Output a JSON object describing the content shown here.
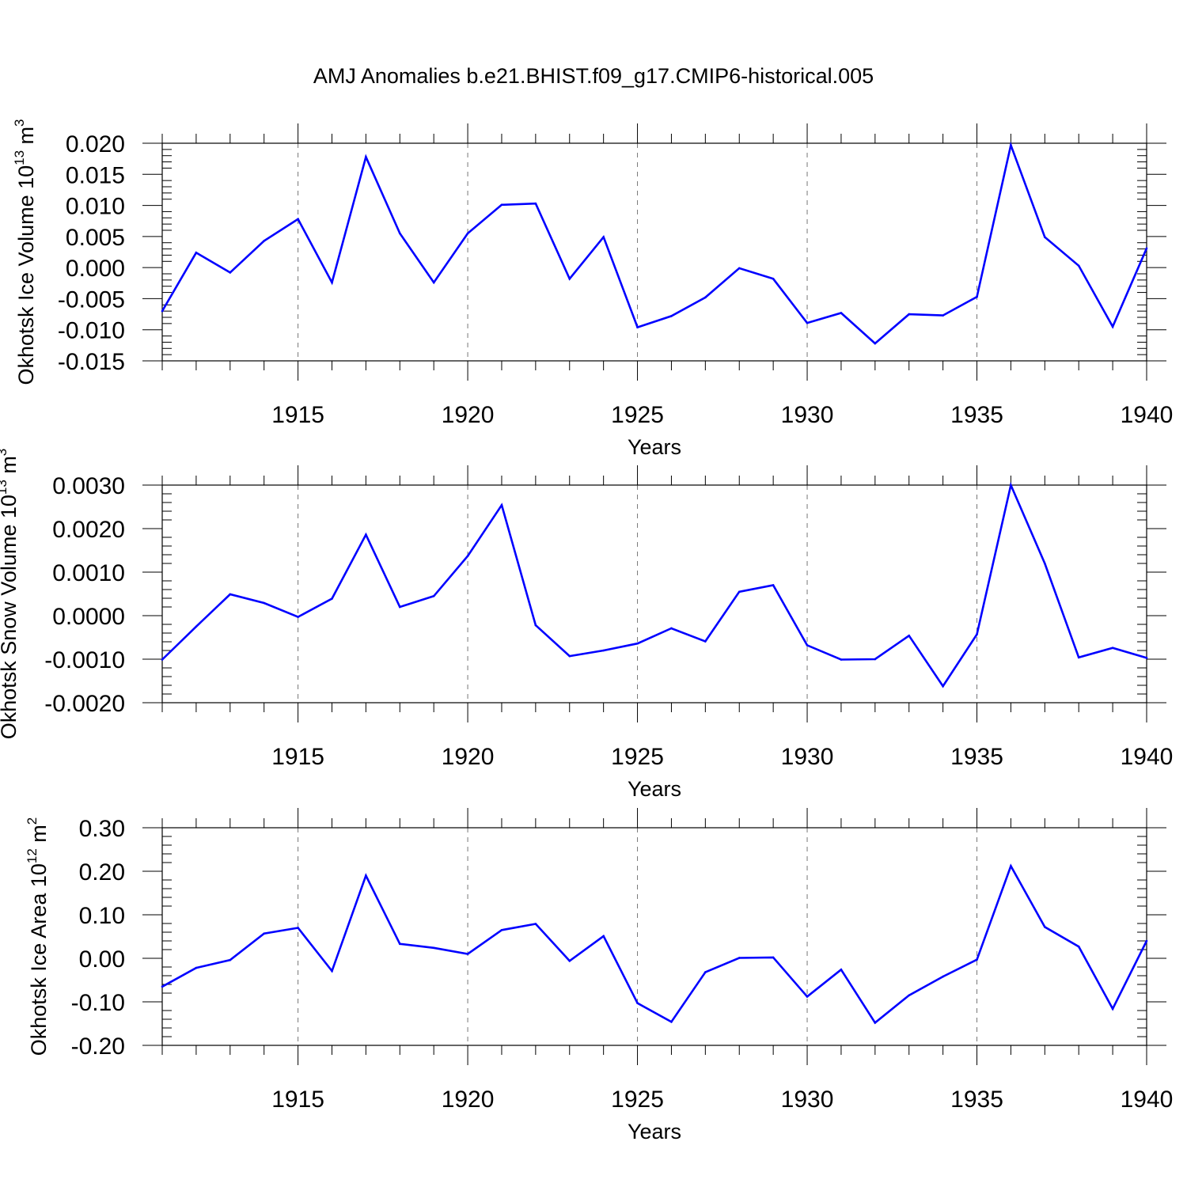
{
  "title": "AMJ Anomalies b.e21.BHIST.f09_g17.CMIP6-historical.005",
  "line_color": "#0000ff",
  "chart_data": [
    {
      "type": "line",
      "ylabel": "Okhotsk Ice Volume 10",
      "ylabel_exp": "13",
      "ylabel_unit": " m",
      "ylabel_unit_exp": "3",
      "xlabel": "Years",
      "xlim": [
        1911,
        1940
      ],
      "ylim": [
        -0.015,
        0.02
      ],
      "xticks": [
        1915,
        1920,
        1925,
        1930,
        1935,
        1940
      ],
      "yticks": [
        -0.015,
        -0.01,
        -0.005,
        0.0,
        0.005,
        0.01,
        0.015,
        0.02
      ],
      "ytick_labels": [
        "-0.015",
        "-0.010",
        "-0.005",
        "0.000",
        "0.005",
        "0.010",
        "0.015",
        "0.020"
      ],
      "grid": "vertical dashed at major x ticks",
      "x": [
        1911,
        1912,
        1913,
        1914,
        1915,
        1916,
        1917,
        1918,
        1919,
        1920,
        1921,
        1922,
        1923,
        1924,
        1925,
        1926,
        1927,
        1928,
        1929,
        1930,
        1931,
        1932,
        1933,
        1934,
        1935,
        1936,
        1937,
        1938,
        1939,
        1940
      ],
      "values": [
        -0.007,
        0.0024,
        -0.0008,
        0.0043,
        0.0078,
        -0.0024,
        0.0178,
        0.0055,
        -0.0024,
        0.0055,
        0.0101,
        0.0103,
        -0.0018,
        0.0049,
        -0.0096,
        -0.0078,
        -0.0048,
        -0.0001,
        -0.0018,
        -0.0089,
        -0.0073,
        -0.0122,
        -0.0075,
        -0.0077,
        -0.0047,
        0.0197,
        0.0049,
        0.0003,
        -0.0095,
        0.0031
      ]
    },
    {
      "type": "line",
      "ylabel": "Okhotsk Snow Volume 10",
      "ylabel_exp": "13",
      "ylabel_unit": " m",
      "ylabel_unit_exp": "3",
      "xlabel": "Years",
      "xlim": [
        1911,
        1940
      ],
      "ylim": [
        -0.002,
        0.003
      ],
      "xticks": [
        1915,
        1920,
        1925,
        1930,
        1935,
        1940
      ],
      "yticks": [
        -0.002,
        -0.001,
        0.0,
        0.001,
        0.002,
        0.003
      ],
      "ytick_labels": [
        "-0.0020",
        "-0.0010",
        "0.0000",
        "0.0010",
        "0.0020",
        "0.0030"
      ],
      "grid": "vertical dashed at major x ticks",
      "x": [
        1911,
        1912,
        1913,
        1914,
        1915,
        1916,
        1917,
        1918,
        1919,
        1920,
        1921,
        1922,
        1923,
        1924,
        1925,
        1926,
        1927,
        1928,
        1929,
        1930,
        1931,
        1932,
        1933,
        1934,
        1935,
        1936,
        1937,
        1938,
        1939,
        1940
      ],
      "values": [
        -0.00101,
        -0.00025,
        0.00049,
        0.00029,
        -3e-05,
        0.00039,
        0.00186,
        0.0002,
        0.00045,
        0.00137,
        0.00254,
        -0.00022,
        -0.00093,
        -0.0008,
        -0.00064,
        -0.00029,
        -0.00059,
        0.00055,
        0.0007,
        -0.00068,
        -0.00101,
        -0.001,
        -0.00046,
        -0.00162,
        -0.00043,
        0.003,
        0.0012,
        -0.00096,
        -0.00074,
        -0.00097
      ]
    },
    {
      "type": "line",
      "ylabel": "Okhotsk Ice Area 10",
      "ylabel_exp": "12",
      "ylabel_unit": " m",
      "ylabel_unit_exp": "2",
      "xlabel": "Years",
      "xlim": [
        1911,
        1940
      ],
      "ylim": [
        -0.2,
        0.3
      ],
      "xticks": [
        1915,
        1920,
        1925,
        1930,
        1935,
        1940
      ],
      "yticks": [
        -0.2,
        -0.1,
        0.0,
        0.1,
        0.2,
        0.3
      ],
      "ytick_labels": [
        "-0.20",
        "-0.10",
        "0.00",
        "0.10",
        "0.20",
        "0.30"
      ],
      "grid": "vertical dashed at major x ticks",
      "x": [
        1911,
        1912,
        1913,
        1914,
        1915,
        1916,
        1917,
        1918,
        1919,
        1920,
        1921,
        1922,
        1923,
        1924,
        1925,
        1926,
        1927,
        1928,
        1929,
        1930,
        1931,
        1932,
        1933,
        1934,
        1935,
        1936,
        1937,
        1938,
        1939,
        1940
      ],
      "values": [
        -0.065,
        -0.022,
        -0.004,
        0.057,
        0.07,
        -0.029,
        0.19,
        0.033,
        0.024,
        0.01,
        0.065,
        0.079,
        -0.006,
        0.051,
        -0.103,
        -0.146,
        -0.032,
        0.001,
        0.002,
        -0.088,
        -0.026,
        -0.148,
        -0.085,
        -0.042,
        -0.003,
        0.212,
        0.072,
        0.027,
        -0.116,
        0.04
      ]
    }
  ]
}
